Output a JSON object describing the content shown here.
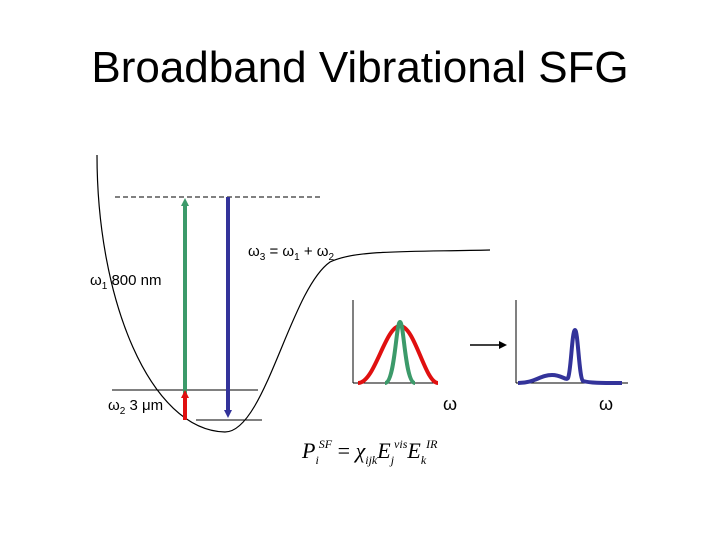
{
  "title": "Broadband Vibrational SFG",
  "sum_label": [
    "ω",
    "3",
    " = ω",
    "1",
    " + ω",
    "2"
  ],
  "visible_label": [
    "ω",
    "1",
    " 800 nm"
  ],
  "ir_label": [
    "ω",
    "2",
    " 3 μm"
  ],
  "plot_input_axis": "ω",
  "plot_output_axis": "ω",
  "equation": [
    "P",
    "i",
    "SF",
    " = ",
    "χ",
    "ijk",
    "E",
    "j",
    "vis",
    "E",
    "k",
    "IR"
  ]
}
